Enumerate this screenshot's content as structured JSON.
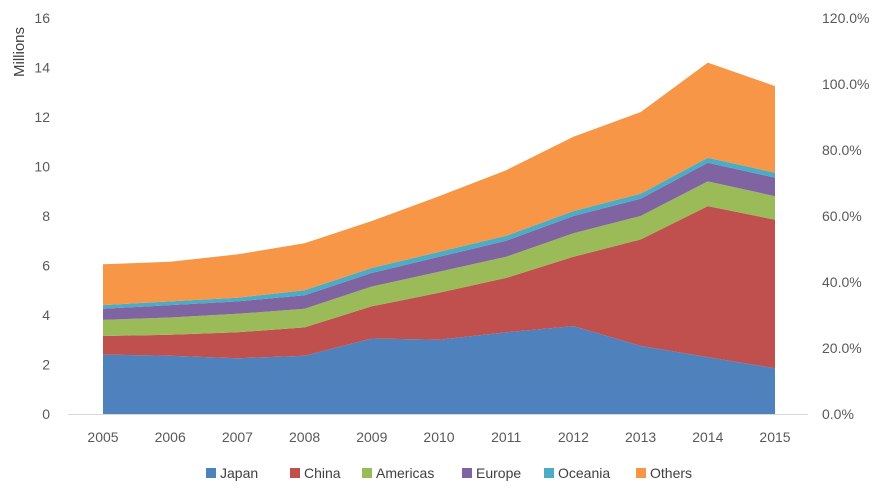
{
  "chart_data": {
    "type": "area",
    "stacked": true,
    "title": "",
    "xlabel": "",
    "ylabel": "Millions",
    "ylim": [
      0,
      16
    ],
    "y_ticks": [
      "0",
      "2",
      "4",
      "6",
      "8",
      "10",
      "12",
      "14",
      "16"
    ],
    "y2lim": [
      0,
      120
    ],
    "y2_ticks": [
      "0.0%",
      "20.0%",
      "40.0%",
      "60.0%",
      "80.0%",
      "100.0%",
      "120.0%"
    ],
    "grid": false,
    "legend_position": "bottom",
    "x": [
      "2005",
      "2006",
      "2007",
      "2008",
      "2009",
      "2010",
      "2011",
      "2012",
      "2013",
      "2014",
      "2015"
    ],
    "series": [
      {
        "name": "Japan",
        "color": "#4F81BD",
        "values": [
          2.4,
          2.35,
          2.25,
          2.35,
          3.05,
          3.0,
          3.3,
          3.55,
          2.75,
          2.3,
          1.85
        ]
      },
      {
        "name": "China",
        "color": "#C0504D",
        "values": [
          0.75,
          0.85,
          1.05,
          1.15,
          1.3,
          1.9,
          2.2,
          2.8,
          4.3,
          6.1,
          6.0
        ]
      },
      {
        "name": "Americas",
        "color": "#9BBB59",
        "values": [
          0.65,
          0.7,
          0.75,
          0.75,
          0.8,
          0.85,
          0.85,
          0.95,
          0.95,
          1.0,
          0.95
        ]
      },
      {
        "name": "Europe",
        "color": "#8064A2",
        "values": [
          0.45,
          0.5,
          0.5,
          0.55,
          0.55,
          0.6,
          0.65,
          0.7,
          0.7,
          0.75,
          0.75
        ]
      },
      {
        "name": "Oceania",
        "color": "#4BACC6",
        "values": [
          0.15,
          0.15,
          0.15,
          0.2,
          0.2,
          0.2,
          0.2,
          0.2,
          0.2,
          0.2,
          0.2
        ]
      },
      {
        "name": "Others",
        "color": "#F79646",
        "values": [
          1.65,
          1.6,
          1.75,
          1.9,
          1.9,
          2.25,
          2.65,
          3.0,
          3.3,
          3.85,
          3.5
        ]
      }
    ]
  }
}
